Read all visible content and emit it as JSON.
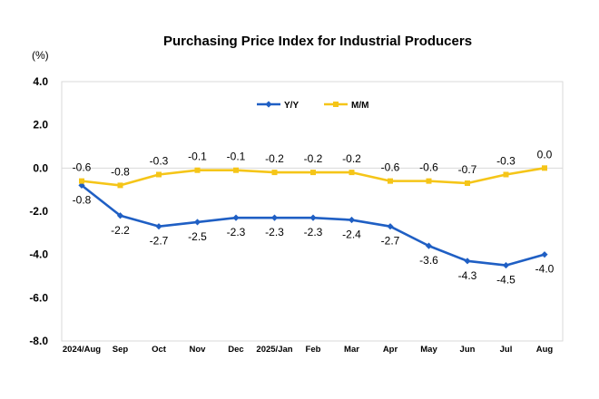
{
  "chart_data": {
    "type": "line",
    "title": "Purchasing Price Index for Industrial Producers",
    "unit_label": "(%)",
    "categories": [
      "2024/Aug",
      "Sep",
      "Oct",
      "Nov",
      "Dec",
      "2025/Jan",
      "Feb",
      "Mar",
      "Apr",
      "May",
      "Jun",
      "Jul",
      "Aug"
    ],
    "ylim": [
      -8.0,
      4.0
    ],
    "yticks": [
      "4.0",
      "2.0",
      "0.0",
      "-2.0",
      "-4.0",
      "-6.0",
      "-8.0"
    ],
    "legend_position": "top-center",
    "grid": false,
    "series": [
      {
        "name": "Y/Y",
        "color": "#1f5fc4",
        "marker": "diamond",
        "values": [
          -0.8,
          -2.2,
          -2.7,
          -2.5,
          -2.3,
          -2.3,
          -2.3,
          -2.4,
          -2.7,
          -3.6,
          -4.3,
          -4.5,
          -4.0
        ],
        "labels": [
          "-0.8",
          "-2.2",
          "-2.7",
          "-2.5",
          "-2.3",
          "-2.3",
          "-2.3",
          "-2.4",
          "-2.7",
          "-3.6",
          "-4.3",
          "-4.5",
          "-4.0"
        ]
      },
      {
        "name": "M/M",
        "color": "#f5c518",
        "marker": "square",
        "values": [
          -0.6,
          -0.8,
          -0.3,
          -0.1,
          -0.1,
          -0.2,
          -0.2,
          -0.2,
          -0.6,
          -0.6,
          -0.7,
          -0.3,
          0.0
        ],
        "labels": [
          "-0.6",
          "-0.8",
          "-0.3",
          "-0.1",
          "-0.1",
          "-0.2",
          "-0.2",
          "-0.2",
          "-0.6",
          "-0.6",
          "-0.7",
          "-0.3",
          "0.0"
        ]
      }
    ]
  }
}
